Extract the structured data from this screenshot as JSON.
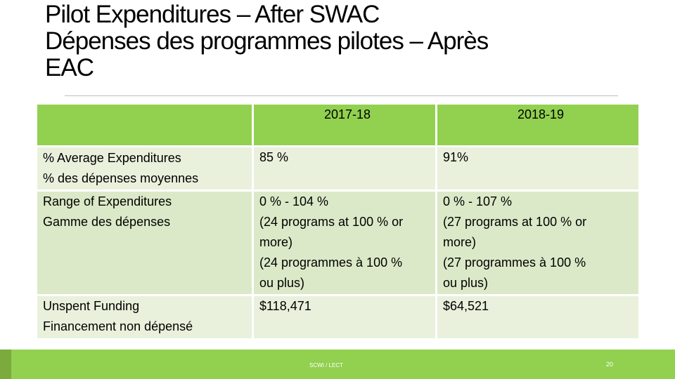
{
  "title": {
    "line1": "Pilot Expenditures – After SWAC",
    "line2": "Dépenses des programmes pilotes – Après",
    "line3": "EAC"
  },
  "table": {
    "headers": [
      "",
      "2017-18",
      "2018-19"
    ],
    "rows": [
      {
        "label": [
          "% Average Expenditures",
          "% des dépenses moyennes"
        ],
        "col1": [
          "85 %"
        ],
        "col2": [
          "91%"
        ]
      },
      {
        "label": [
          "Range of Expenditures",
          "Gamme des dépenses"
        ],
        "col1": [
          "0 % - 104 %",
          "(24 programs at 100 % or",
          "more)",
          "(24 programmes à 100 %",
          "ou plus)"
        ],
        "col2": [
          "0 % - 107 %",
          "(27 programs at 100 % or",
          "more)",
          "(27 programmes à 100 %",
          "ou plus)"
        ]
      },
      {
        "label": [
          "Unspent Funding",
          "Financement non dépensé"
        ],
        "col1": [
          "$118,471"
        ],
        "col2": [
          "$64,521"
        ]
      }
    ]
  },
  "footer": {
    "center": "SCWI / LECT",
    "page_number": "20"
  },
  "colors": {
    "header_green": "#92d050",
    "row_light": "#e9f1dc",
    "row_alt": "#dce9c8"
  }
}
